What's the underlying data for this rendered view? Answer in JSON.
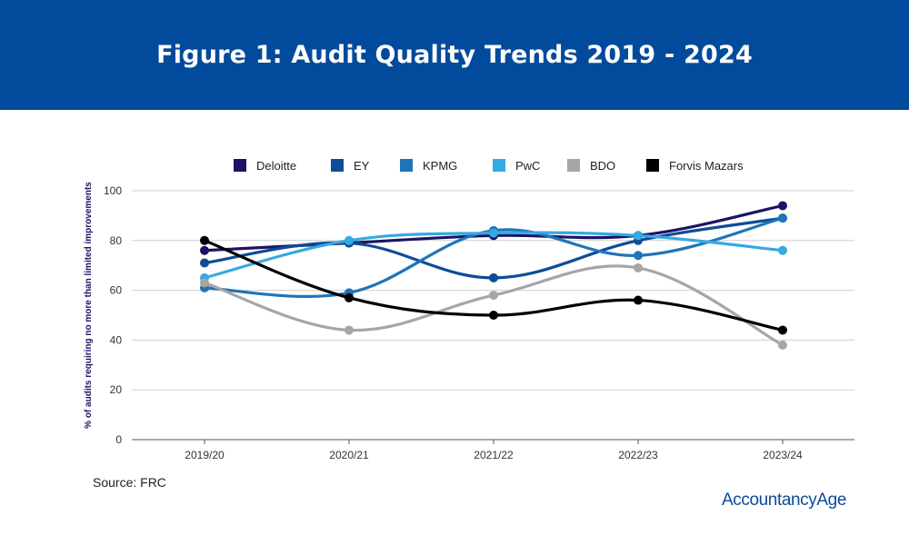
{
  "banner": {
    "title": "Figure 1: Audit Quality Trends 2019 - 2024"
  },
  "source": "Source: FRC",
  "brand": "AccountancyAge",
  "chart_data": {
    "type": "line",
    "title": "Figure 1: Audit Quality Trends 2019 - 2024",
    "xlabel": "",
    "ylabel": "% of audits requiring no more than limited improvements",
    "categories": [
      "2019/20",
      "2020/21",
      "2021/22",
      "2022/23",
      "2023/24"
    ],
    "ylim": [
      0,
      100
    ],
    "yticks": [
      0,
      20,
      40,
      60,
      80,
      100
    ],
    "grid": true,
    "legend_position": "top",
    "series": [
      {
        "name": "Deloitte",
        "color": "#1b1464",
        "values": [
          76,
          79,
          82,
          82,
          94
        ]
      },
      {
        "name": "EY",
        "color": "#0f4c96",
        "values": [
          71,
          79,
          65,
          80,
          89
        ]
      },
      {
        "name": "KPMG",
        "color": "#1f74b9",
        "values": [
          61,
          59,
          84,
          74,
          89
        ]
      },
      {
        "name": "PwC",
        "color": "#35a9e1",
        "values": [
          65,
          80,
          83,
          82,
          76
        ]
      },
      {
        "name": "BDO",
        "color": "#a6a6a6",
        "values": [
          63,
          44,
          58,
          69,
          38
        ]
      },
      {
        "name": "Forvis Mazars",
        "color": "#000000",
        "values": [
          80,
          57,
          50,
          56,
          44
        ]
      }
    ]
  }
}
